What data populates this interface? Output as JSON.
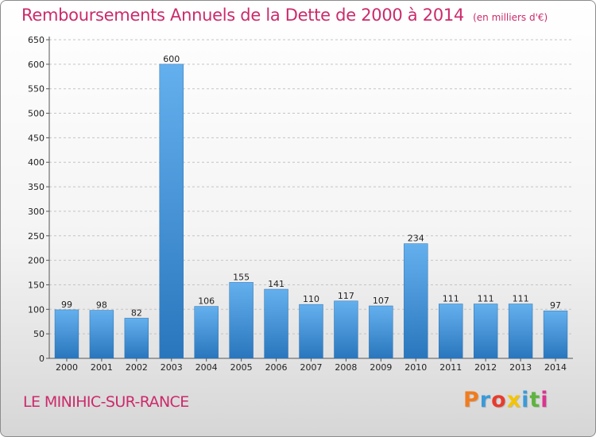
{
  "chart_data": {
    "type": "bar",
    "title": "Remboursements Annuels de la Dette de 2000 à 2014",
    "unit_note": "(en milliers d'€)",
    "categories": [
      "2000",
      "2001",
      "2002",
      "2003",
      "2004",
      "2005",
      "2006",
      "2007",
      "2008",
      "2009",
      "2010",
      "2011",
      "2012",
      "2013",
      "2014"
    ],
    "values": [
      99,
      98,
      82,
      600,
      106,
      155,
      141,
      110,
      117,
      107,
      234,
      111,
      111,
      111,
      97
    ],
    "data_labels": [
      "99",
      "98",
      "82",
      "600",
      "106",
      "155",
      "141",
      "110",
      "117",
      "107",
      "234",
      "111",
      "111",
      "111",
      "97"
    ],
    "ylim": [
      0,
      650
    ],
    "yticks": [
      "0",
      "50",
      "100",
      "150",
      "200",
      "250",
      "300",
      "350",
      "400",
      "450",
      "500",
      "550",
      "600",
      "650"
    ],
    "grid": "horizontal dashed",
    "legend": "none",
    "bar_color_top": "#64b0ee",
    "bar_color_bottom": "#2a76bd"
  },
  "place_name": "LE MINIHIC-SUR-RANCE",
  "logo": {
    "letters": [
      "P",
      "r",
      "o",
      "x",
      "i",
      "t",
      "i"
    ],
    "colors": [
      "#f07c1e",
      "#3a9ad9",
      "#e63c2e",
      "#f5c400",
      "#3a9ad9",
      "#5cb43d",
      "#d9358f"
    ]
  },
  "colors": {
    "title": "#cc2a6b",
    "place": "#cc2a6b"
  }
}
